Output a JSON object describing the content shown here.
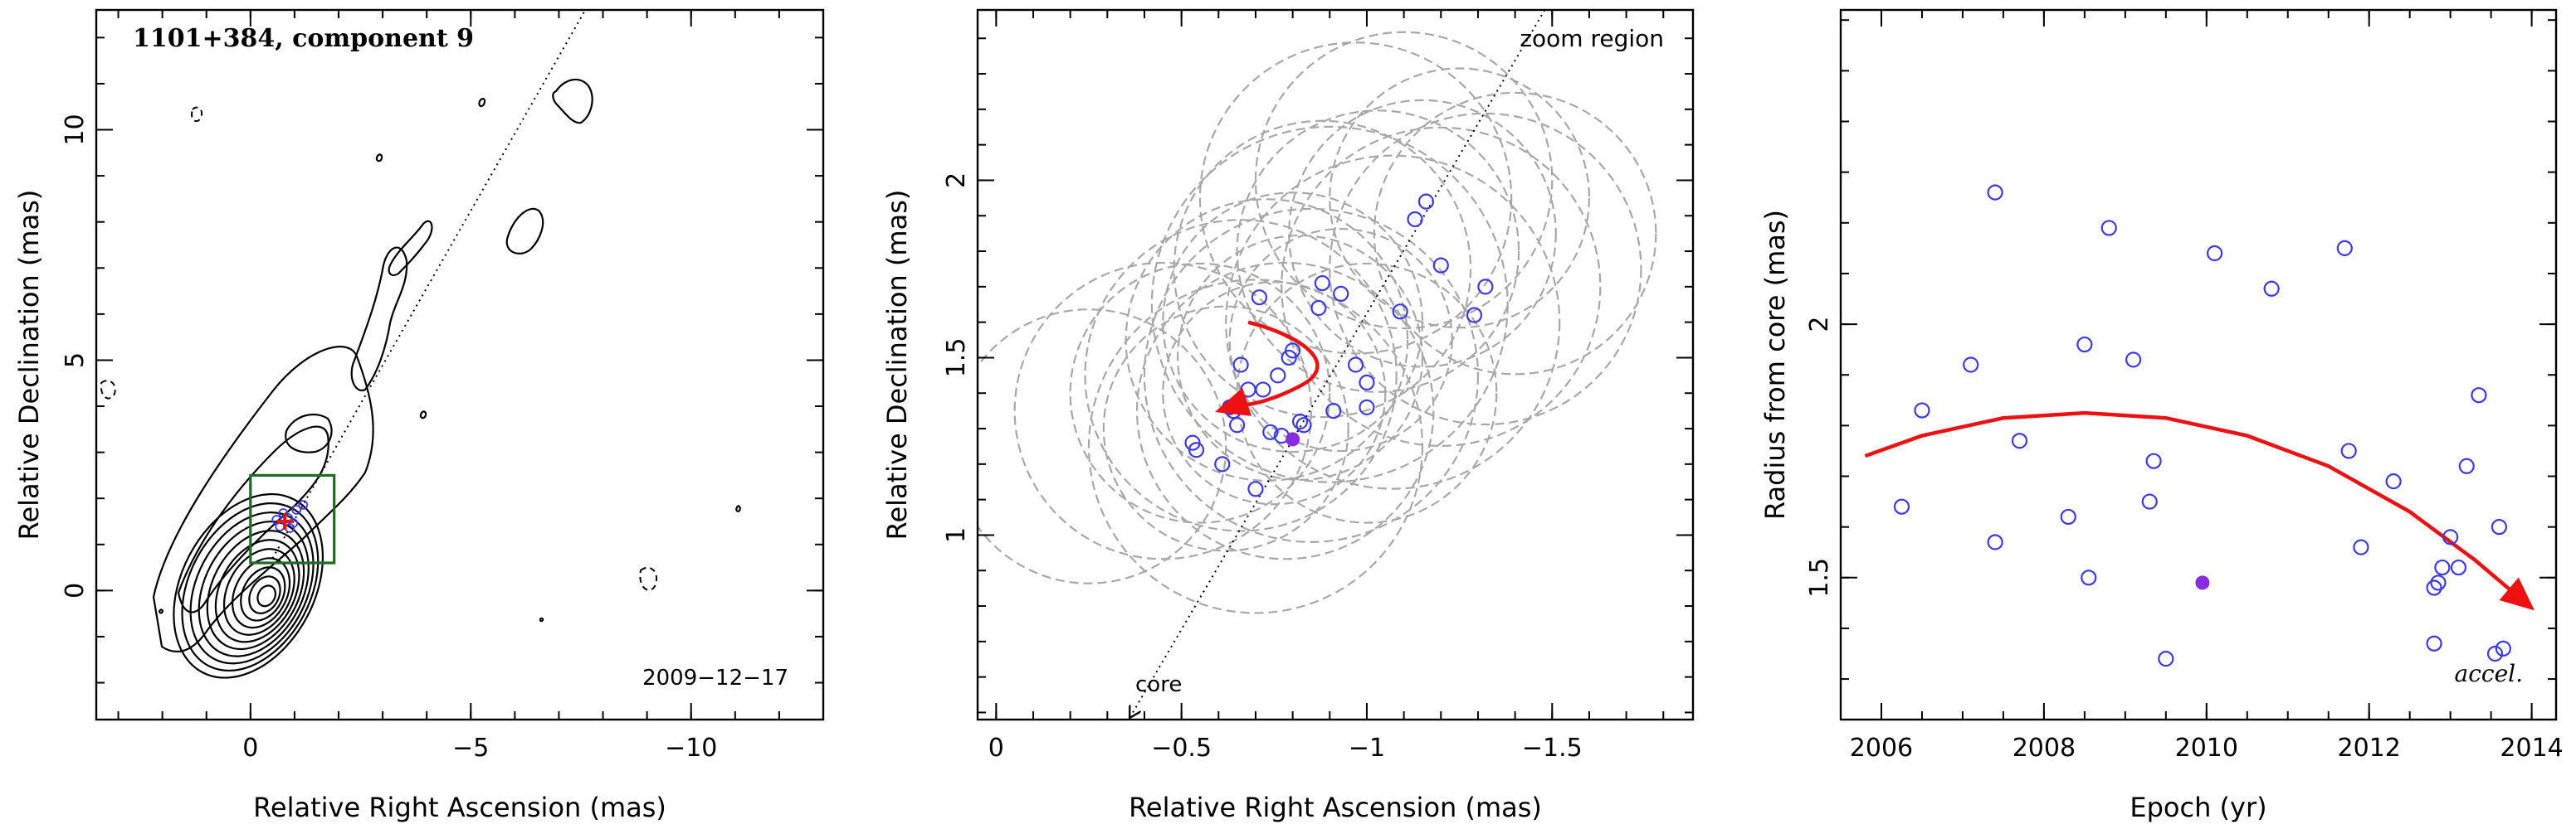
{
  "colors": {
    "points": "#3a3ae6",
    "median_point": "#8a2be2",
    "arrow": "#ee1111",
    "box": "#1f6b1f",
    "circles": "#a8a8a8"
  },
  "chart_data": [
    {
      "type": "contour",
      "title": "1101+384, component 9",
      "date_label": "2009−12−17",
      "xlabel": "Relative Right Ascension (mas)",
      "ylabel": "Relative Declination (mas)",
      "xlim": [
        3.5,
        -13
      ],
      "ylim": [
        -2.8,
        12.6
      ],
      "xticks": [
        0,
        -5,
        -10
      ],
      "xtick_labels": [
        "0",
        "−5",
        "−10"
      ],
      "yticks": [
        0,
        5,
        10
      ],
      "ytick_labels": [
        "0",
        "5",
        "10"
      ],
      "zoom_box": {
        "x": [
          0,
          -1.9
        ],
        "y": [
          0.6,
          2.5
        ]
      },
      "jet_direction": {
        "x": [
          -0.5,
          -7.6
        ],
        "y": [
          0.7,
          12.6
        ]
      },
      "component_position": {
        "x": -0.78,
        "y": 1.5
      }
    },
    {
      "type": "scatter",
      "xlabel": "Relative Right Ascension (mas)",
      "ylabel": "Relative Declination (mas)",
      "xlim": [
        0.05,
        -1.88
      ],
      "ylim": [
        0.48,
        2.48
      ],
      "xticks": [
        0,
        -0.5,
        -1,
        -1.5
      ],
      "xtick_labels": [
        "0",
        "−0.5",
        "−1",
        "−1.5"
      ],
      "yticks": [
        1,
        1.5,
        2
      ],
      "ytick_labels": [
        "1",
        "1.5",
        "2"
      ],
      "annotations": {
        "zoom": "zoom region",
        "core": "core"
      },
      "core_line": {
        "x": [
          -1.48,
          -0.36
        ],
        "y": [
          2.48,
          0.48
        ]
      },
      "points": [
        {
          "x": -0.53,
          "y": 1.26
        },
        {
          "x": -0.54,
          "y": 1.24
        },
        {
          "x": -0.61,
          "y": 1.2
        },
        {
          "x": -0.63,
          "y": 1.36
        },
        {
          "x": -0.64,
          "y": 1.35
        },
        {
          "x": -0.65,
          "y": 1.31
        },
        {
          "x": -0.66,
          "y": 1.48
        },
        {
          "x": -0.68,
          "y": 1.41
        },
        {
          "x": -0.7,
          "y": 1.13
        },
        {
          "x": -0.71,
          "y": 1.67
        },
        {
          "x": -0.72,
          "y": 1.41
        },
        {
          "x": -0.74,
          "y": 1.29
        },
        {
          "x": -0.76,
          "y": 1.45
        },
        {
          "x": -0.77,
          "y": 1.28
        },
        {
          "x": -0.79,
          "y": 1.5
        },
        {
          "x": -0.8,
          "y": 1.52
        },
        {
          "x": -0.82,
          "y": 1.32
        },
        {
          "x": -0.83,
          "y": 1.31
        },
        {
          "x": -0.87,
          "y": 1.64
        },
        {
          "x": -0.88,
          "y": 1.71
        },
        {
          "x": -0.91,
          "y": 1.35
        },
        {
          "x": -0.93,
          "y": 1.68
        },
        {
          "x": -0.97,
          "y": 1.48
        },
        {
          "x": -1.0,
          "y": 1.36
        },
        {
          "x": -1.0,
          "y": 1.43
        },
        {
          "x": -1.09,
          "y": 1.63
        },
        {
          "x": -1.13,
          "y": 1.89
        },
        {
          "x": -1.16,
          "y": 1.94
        },
        {
          "x": -1.2,
          "y": 1.76
        },
        {
          "x": -1.29,
          "y": 1.62
        },
        {
          "x": -1.32,
          "y": 1.7
        }
      ],
      "median_point": {
        "x": -0.8,
        "y": 1.27
      },
      "circles": [
        {
          "x": -0.25,
          "y": 1.25,
          "r": 0.37
        },
        {
          "x": -0.45,
          "y": 1.35,
          "r": 0.4
        },
        {
          "x": -0.55,
          "y": 1.4,
          "r": 0.35
        },
        {
          "x": -0.62,
          "y": 1.3,
          "r": 0.33
        },
        {
          "x": -0.66,
          "y": 1.45,
          "r": 0.42
        },
        {
          "x": -0.7,
          "y": 1.25,
          "r": 0.45
        },
        {
          "x": -0.73,
          "y": 1.55,
          "r": 0.38
        },
        {
          "x": -0.75,
          "y": 1.4,
          "r": 0.3
        },
        {
          "x": -0.78,
          "y": 1.35,
          "r": 0.4
        },
        {
          "x": -0.8,
          "y": 1.6,
          "r": 0.35
        },
        {
          "x": -0.82,
          "y": 1.5,
          "r": 0.33
        },
        {
          "x": -0.85,
          "y": 1.45,
          "r": 0.45
        },
        {
          "x": -0.88,
          "y": 1.75,
          "r": 0.4
        },
        {
          "x": -0.9,
          "y": 1.65,
          "r": 0.48
        },
        {
          "x": -0.93,
          "y": 1.55,
          "r": 0.3
        },
        {
          "x": -0.97,
          "y": 1.95,
          "r": 0.42
        },
        {
          "x": -1.0,
          "y": 1.4,
          "r": 0.35
        },
        {
          "x": -1.03,
          "y": 1.8,
          "r": 0.38
        },
        {
          "x": -1.07,
          "y": 1.6,
          "r": 0.45
        },
        {
          "x": -1.1,
          "y": 2.0,
          "r": 0.4
        },
        {
          "x": -1.15,
          "y": 1.85,
          "r": 0.36
        },
        {
          "x": -1.2,
          "y": 1.7,
          "r": 0.43
        },
        {
          "x": -1.25,
          "y": 1.95,
          "r": 0.35
        },
        {
          "x": -1.32,
          "y": 1.75,
          "r": 0.42
        },
        {
          "x": -1.4,
          "y": 1.85,
          "r": 0.38
        }
      ],
      "arrow_path": [
        [
          -0.68,
          1.6
        ],
        [
          -0.83,
          1.56
        ],
        [
          -0.93,
          1.48
        ],
        [
          -0.82,
          1.42
        ],
        [
          -0.66,
          1.37
        ],
        [
          -0.6,
          1.35
        ]
      ]
    },
    {
      "type": "scatter",
      "xlabel": "Epoch (yr)",
      "ylabel": "Radius from core (mas)",
      "xlim": [
        2005.5,
        2014.3
      ],
      "ylim": [
        1.22,
        2.62
      ],
      "xticks": [
        2006,
        2008,
        2010,
        2012,
        2014
      ],
      "xtick_labels": [
        "2006",
        "2008",
        "2010",
        "2012",
        "2014"
      ],
      "yticks": [
        1.5,
        2
      ],
      "ytick_labels": [
        "1.5",
        "2"
      ],
      "annotation": "accel.",
      "points": [
        {
          "x": 2006.25,
          "y": 1.64
        },
        {
          "x": 2006.5,
          "y": 1.83
        },
        {
          "x": 2007.1,
          "y": 1.92
        },
        {
          "x": 2007.4,
          "y": 2.26
        },
        {
          "x": 2007.4,
          "y": 1.57
        },
        {
          "x": 2007.7,
          "y": 1.77
        },
        {
          "x": 2008.3,
          "y": 1.62
        },
        {
          "x": 2008.5,
          "y": 1.96
        },
        {
          "x": 2008.55,
          "y": 1.5
        },
        {
          "x": 2008.8,
          "y": 2.19
        },
        {
          "x": 2009.1,
          "y": 1.93
        },
        {
          "x": 2009.3,
          "y": 1.65
        },
        {
          "x": 2009.35,
          "y": 1.73
        },
        {
          "x": 2009.5,
          "y": 1.34
        },
        {
          "x": 2010.1,
          "y": 2.14
        },
        {
          "x": 2010.8,
          "y": 2.07
        },
        {
          "x": 2011.7,
          "y": 2.15
        },
        {
          "x": 2011.75,
          "y": 1.75
        },
        {
          "x": 2011.9,
          "y": 1.56
        },
        {
          "x": 2012.3,
          "y": 1.69
        },
        {
          "x": 2012.8,
          "y": 1.37
        },
        {
          "x": 2012.8,
          "y": 1.48
        },
        {
          "x": 2012.85,
          "y": 1.49
        },
        {
          "x": 2012.9,
          "y": 1.52
        },
        {
          "x": 2013.0,
          "y": 1.58
        },
        {
          "x": 2013.1,
          "y": 1.52
        },
        {
          "x": 2013.2,
          "y": 1.72
        },
        {
          "x": 2013.35,
          "y": 1.86
        },
        {
          "x": 2013.55,
          "y": 1.35
        },
        {
          "x": 2013.6,
          "y": 1.6
        },
        {
          "x": 2013.65,
          "y": 1.36
        }
      ],
      "median_point": {
        "x": 2009.95,
        "y": 1.49
      },
      "fit_curve": [
        [
          2005.8,
          1.74
        ],
        [
          2006.5,
          1.78
        ],
        [
          2007.5,
          1.815
        ],
        [
          2008.5,
          1.825
        ],
        [
          2009.5,
          1.815
        ],
        [
          2010.5,
          1.78
        ],
        [
          2011.5,
          1.72
        ],
        [
          2012.5,
          1.63
        ],
        [
          2013.3,
          1.535
        ],
        [
          2014.0,
          1.44
        ]
      ]
    }
  ]
}
